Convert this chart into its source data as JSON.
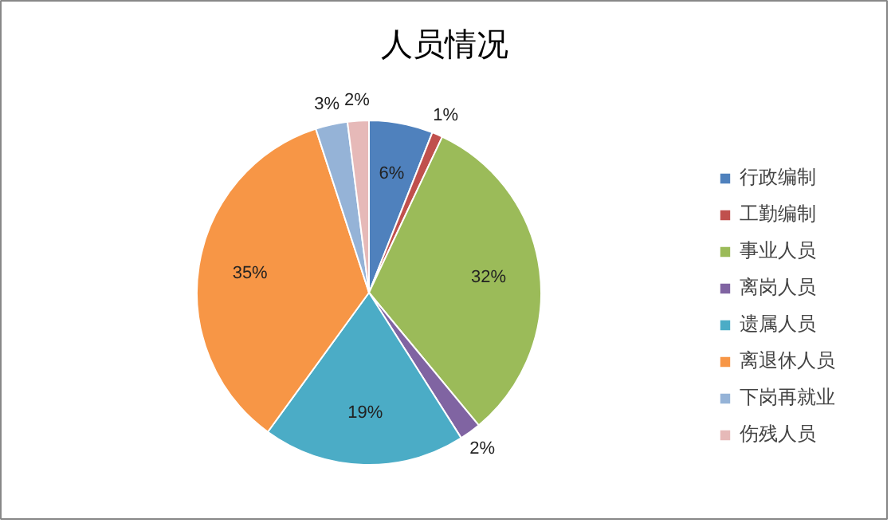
{
  "chart_data": {
    "type": "pie",
    "title": "人员情况",
    "categories": [
      "行政编制",
      "工勤编制",
      "事业人员",
      "离岗人员",
      "遗属人员",
      "离退休人员",
      "下岗再就业",
      "伤残人员"
    ],
    "values": [
      6,
      1,
      32,
      2,
      19,
      35,
      3,
      2
    ],
    "colors": [
      "#4f81bd",
      "#c0504d",
      "#9bbb59",
      "#8064a2",
      "#4bacc6",
      "#f79646",
      "#95b3d7",
      "#e6b9b8"
    ],
    "value_labels": [
      "6%",
      "1%",
      "32%",
      "2%",
      "19%",
      "35%",
      "3%",
      "2%"
    ],
    "legend": "right"
  }
}
